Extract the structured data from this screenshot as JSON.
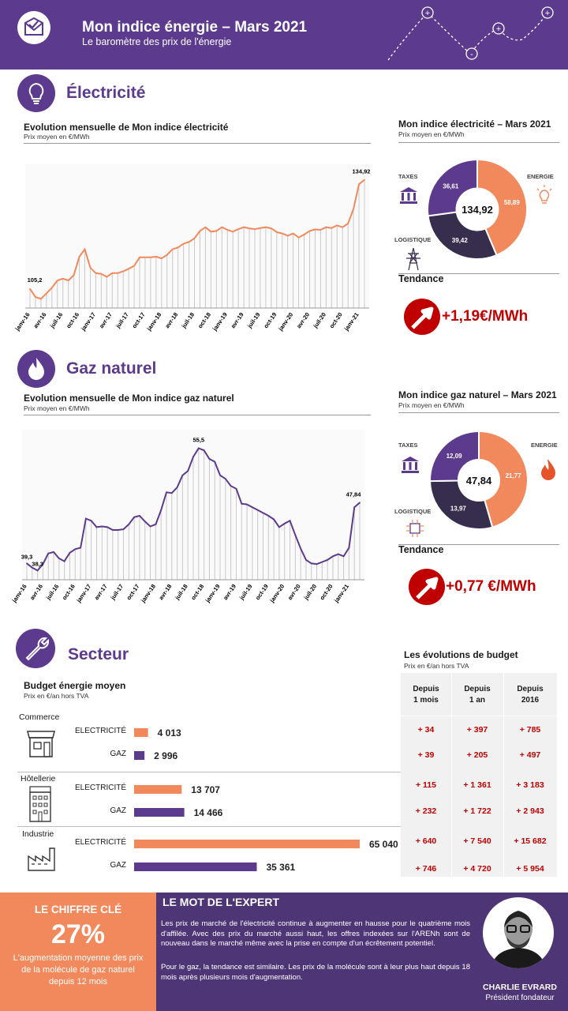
{
  "header": {
    "title": "Mon indice énergie – Mars 2021",
    "subtitle": "Le baromètre des prix de l'énergie",
    "logo_icon": "envelope-check-icon",
    "deco": {
      "plus_sign": "+",
      "minus_sign": "-"
    }
  },
  "electricite": {
    "section_title": "Électricité",
    "icon": "lightbulb-icon",
    "line_title": "Evolution mensuelle de Mon indice électricité",
    "line_sub": "Prix moyen en €/MWh",
    "donut_title": "Mon indice électricité – Mars 2021",
    "donut_sub": "Prix moyen en €/MWh",
    "donut_center": "134,92",
    "label_taxes": "TAXES",
    "label_energie": "ENERGIE",
    "label_logistique": "LOGISTIQUE",
    "tendance_label": "Tendance",
    "tendance_value": "+1,19€/MWh"
  },
  "gaz": {
    "section_title": "Gaz naturel",
    "icon": "flame-icon",
    "line_title": "Evolution mensuelle de Mon indice gaz naturel",
    "line_sub": "Prix moyen en €/MWh",
    "donut_title": "Mon indice gaz naturel – Mars 2021",
    "donut_sub": "Prix moyen en €/MWh",
    "donut_center": "47,84",
    "label_taxes": "TAXES",
    "label_energie": "ENERGIE",
    "label_logistique": "LOGISTIQUE",
    "tendance_label": "Tendance",
    "tendance_value": "+0,77 €/MWh"
  },
  "secteur": {
    "section_title": "Secteur",
    "icon": "wrench-icon",
    "budget_title": "Budget énergie moyen",
    "budget_sub": "Prix en €/an hors TVA",
    "table_title": "Les évolutions de budget",
    "table_sub": "Prix en €/an hors TVA",
    "table_headers": [
      "Depuis\n1 mois",
      "Depuis\n1 an",
      "Depuis\n2016"
    ],
    "label_elec": "ELECTRICITÉ",
    "label_gaz": "GAZ"
  },
  "chart_data": [
    {
      "type": "line",
      "title": "Evolution mensuelle de Mon indice électricité",
      "ylabel": "Prix moyen en €/MWh",
      "x_ticks": [
        "janv-16",
        "avr-16",
        "juil-16",
        "oct-16",
        "janv-17",
        "avr-17",
        "juil-17",
        "oct-17",
        "janv-18",
        "avr-18",
        "juil-18",
        "oct-18",
        "janv-19",
        "avr-19",
        "juil-19",
        "oct-19",
        "janv-20",
        "avr-20",
        "juil-20",
        "oct-20",
        "janv-21"
      ],
      "annotations": {
        "first": "105,2",
        "last": "134,92"
      },
      "series": [
        {
          "values": [
            105.2,
            103,
            102.5,
            104,
            105.5,
            107.5,
            108,
            107.5,
            109,
            114,
            116,
            111,
            109.5,
            109.3,
            108.5,
            109.5,
            109.5,
            110,
            110.7,
            111.5,
            113.8,
            113.8,
            113.8,
            114,
            113.5,
            114.5,
            116,
            116.5,
            117.5,
            118,
            119,
            121,
            122,
            120.8,
            121,
            122,
            121.3,
            120.8,
            121.5,
            122,
            121.7,
            121.5,
            121.8,
            122,
            121.7,
            120.7,
            120.3,
            119.7,
            120.3,
            119.2,
            120,
            121,
            121.4,
            121.3,
            122,
            121.8,
            122.5,
            122,
            123,
            127,
            133.7,
            134.92
          ]
        }
      ],
      "ylim": [
        100,
        137
      ]
    },
    {
      "type": "line",
      "title": "Evolution mensuelle de Mon indice gaz naturel",
      "ylabel": "Prix moyen en €/MWh",
      "x_ticks": [
        "janv-16",
        "avr-16",
        "juil-16",
        "oct-16",
        "janv-17",
        "avr-17",
        "juil-17",
        "oct-17",
        "janv-18",
        "avr-18",
        "juil-18",
        "oct-18",
        "janv-19",
        "avr-19",
        "juil-19",
        "oct-19",
        "janv-20",
        "avr-20",
        "juil-20",
        "oct-20",
        "janv-21"
      ],
      "annotations": {
        "first": "39,3",
        "peak": "55,5",
        "low": "38,3",
        "last": "47,84"
      },
      "series": [
        {
          "values": [
            39.3,
            38.7,
            38.3,
            39.2,
            40.7,
            40.9,
            40,
            39.6,
            40.8,
            41.3,
            41.5,
            45.6,
            45.3,
            44.4,
            44.5,
            44.4,
            44,
            44,
            44.1,
            44.8,
            45.8,
            46,
            45.2,
            44.5,
            44.8,
            46.8,
            49.3,
            49.2,
            50,
            51.7,
            52.3,
            54.3,
            55.5,
            55.2,
            54,
            53.6,
            51.7,
            51.2,
            50.2,
            49.8,
            47.7,
            47.6,
            47.2,
            46.8,
            46.4,
            46,
            45.5,
            44.4,
            44.9,
            45.3,
            43.3,
            41.4,
            39.8,
            39.3,
            39.2,
            39.5,
            39.8,
            40.3,
            40.6,
            40.3,
            41.5,
            47.2,
            47.84
          ]
        }
      ],
      "ylim": [
        37,
        57
      ]
    },
    {
      "type": "pie",
      "title": "Mon indice électricité – Mars 2021",
      "center": "134,92",
      "slices": [
        {
          "label": "ENERGIE",
          "value": 58.89,
          "value_text": "58,89",
          "color": "#f2895c"
        },
        {
          "label": "LOGISTIQUE",
          "value": 39.42,
          "value_text": "39,42",
          "color": "#372d4d"
        },
        {
          "label": "TAXES",
          "value": 36.61,
          "value_text": "36,61",
          "color": "#5c3a8e"
        }
      ]
    },
    {
      "type": "pie",
      "title": "Mon indice gaz naturel – Mars 2021",
      "center": "47,84",
      "slices": [
        {
          "label": "ENERGIE",
          "value": 21.77,
          "value_text": "21,77",
          "color": "#f2895c"
        },
        {
          "label": "LOGISTIQUE",
          "value": 13.97,
          "value_text": "13,97",
          "color": "#372d4d"
        },
        {
          "label": "TAXES",
          "value": 12.09,
          "value_text": "12,09",
          "color": "#5c3a8e"
        }
      ]
    },
    {
      "type": "bar",
      "title": "Budget énergie moyen",
      "categories": [
        "Commerce",
        "Hôtellerie",
        "Industrie"
      ],
      "series": [
        {
          "name": "ELECTRICITÉ",
          "values": [
            4013,
            13707,
            65040
          ],
          "labels": [
            "4 013",
            "13 707",
            "65 040"
          ],
          "color": "#f2895c"
        },
        {
          "name": "GAZ",
          "values": [
            2996,
            14466,
            35361
          ],
          "labels": [
            "2 996",
            "14 466",
            "35 361"
          ],
          "color": "#5c3a8e"
        }
      ]
    },
    {
      "type": "table",
      "title": "Les évolutions de budget",
      "columns": [
        "Depuis 1 mois",
        "Depuis 1 an",
        "Depuis 2016"
      ],
      "rows": [
        [
          "+ 34",
          "+ 397",
          "+ 785"
        ],
        [
          "+ 39",
          "+ 205",
          "+ 497"
        ],
        [
          "+ 115",
          "+ 1 361",
          "+ 3 183"
        ],
        [
          "+ 232",
          "+ 1 722",
          "+ 2 943"
        ],
        [
          "+ 640",
          "+ 7 540",
          "+ 15 682"
        ],
        [
          "+ 746",
          "+ 4 720",
          "+ 5 954"
        ]
      ]
    }
  ],
  "key_figure": {
    "title": "LE CHIFFRE CLÉ",
    "value": "27%",
    "text": "L'augmentation moyenne des prix de la molécule de gaz naturel depuis 12 mois"
  },
  "expert": {
    "title": "LE MOT DE L'EXPERT",
    "paragraph1": "Les prix de marché de l'électricité continue à augmenter en hausse pour le quatrième mois d'affilée. Avec des prix du marché aussi haut, les offres indexées sur l'ARENh sont de nouveau dans le marché même avec la prise en compte d'un écrêtement potentiel.",
    "paragraph2": "Pour le gaz, la tendance est similaire. Les prix de la molécule sont à leur plus haut depuis 18 mois après plusieurs mois d'augmentation.",
    "name": "CHARLIE EVRARD",
    "role": "Président fondateur"
  },
  "colors": {
    "purple": "#5c3a8e",
    "orange": "#f2895c",
    "dark": "#372d4d",
    "red": "#c00000"
  }
}
